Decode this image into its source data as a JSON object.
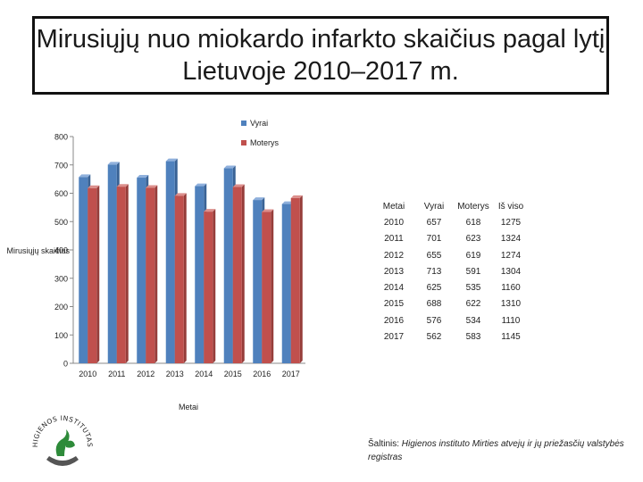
{
  "title": "Mirusiųjų nuo miokardo infarkto skaičius pagal lytį Lietuvoje 2010–2017 m.",
  "chart_data": {
    "type": "bar",
    "categories": [
      "2010",
      "2011",
      "2012",
      "2013",
      "2014",
      "2015",
      "2016",
      "2017"
    ],
    "series": [
      {
        "name": "Vyrai",
        "values": [
          657,
          701,
          655,
          713,
          625,
          688,
          576,
          562
        ],
        "color": "#4F81BD"
      },
      {
        "name": "Moterys",
        "values": [
          618,
          623,
          619,
          591,
          535,
          622,
          534,
          583
        ],
        "color": "#C0504D"
      }
    ],
    "xlabel": "Metai",
    "ylabel": "Mirusiųjų skaičius",
    "ylim": [
      0,
      800
    ],
    "yticks": [
      0,
      100,
      200,
      300,
      400,
      500,
      600,
      700,
      800
    ],
    "legend_position": "top-right",
    "grid": false
  },
  "table": {
    "headers": [
      "Metai",
      "Vyrai",
      "Moterys",
      "Iš viso"
    ],
    "rows": [
      [
        "2010",
        "657",
        "618",
        "1275"
      ],
      [
        "2011",
        "701",
        "623",
        "1324"
      ],
      [
        "2012",
        "655",
        "619",
        "1274"
      ],
      [
        "2013",
        "713",
        "591",
        "1304"
      ],
      [
        "2014",
        "625",
        "535",
        "1160"
      ],
      [
        "2015",
        "688",
        "622",
        "1310"
      ],
      [
        "2016",
        "576",
        "534",
        "1110"
      ],
      [
        "2017",
        "562",
        "583",
        "1145"
      ]
    ]
  },
  "source": {
    "prefix": "Šaltinis: ",
    "text": "Higienos instituto Mirties atvejų ir jų priežasčių valstybės registras"
  },
  "logo": {
    "text": "HIGIENOS INSTITUTAS"
  }
}
